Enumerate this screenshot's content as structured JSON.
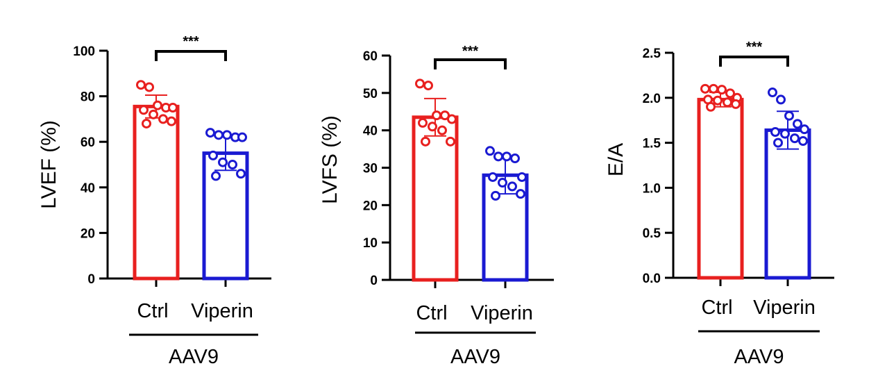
{
  "colors": {
    "ctrl": "#e8201f",
    "viperin": "#1a1ad2",
    "axis": "#000000"
  },
  "chart_data": [
    {
      "type": "bar",
      "ylabel": "LVEF (%)",
      "categories": [
        "Ctrl",
        "Viperin"
      ],
      "group_label": "AAV9",
      "significance": "***",
      "ylim": [
        0,
        100
      ],
      "yticks": [
        0,
        20,
        40,
        60,
        80,
        100
      ],
      "ytick_labels": [
        "0",
        "20",
        "40",
        "60",
        "80",
        "100"
      ],
      "series": [
        {
          "category": "Ctrl",
          "mean": 75.5,
          "sd": 5.0,
          "points": [
            85,
            84,
            76,
            75,
            75,
            74,
            72,
            70,
            69,
            68
          ]
        },
        {
          "category": "Viperin",
          "mean": 55.0,
          "sd": 7.5,
          "points": [
            64,
            63,
            63,
            62,
            62,
            54,
            51,
            50,
            46,
            45
          ]
        }
      ]
    },
    {
      "type": "bar",
      "ylabel": "LVFS (%)",
      "categories": [
        "Ctrl",
        "Viperin"
      ],
      "group_label": "AAV9",
      "significance": "***",
      "ylim": [
        0,
        60
      ],
      "yticks": [
        0,
        10,
        20,
        30,
        40,
        50,
        60
      ],
      "ytick_labels": [
        "0",
        "10",
        "20",
        "30",
        "40",
        "50",
        "60"
      ],
      "series": [
        {
          "category": "Ctrl",
          "mean": 43.5,
          "sd": 5.0,
          "points": [
            52.5,
            52,
            44,
            44,
            43,
            42,
            41,
            40,
            37,
            37
          ]
        },
        {
          "category": "Viperin",
          "mean": 28.0,
          "sd": 5.0,
          "points": [
            34.5,
            33,
            33,
            32.5,
            27.5,
            27.5,
            26,
            25,
            23,
            22.5
          ]
        }
      ]
    },
    {
      "type": "bar",
      "ylabel": "E/A",
      "categories": [
        "Ctrl",
        "Viperin"
      ],
      "group_label": "AAV9",
      "significance": "***",
      "ylim": [
        0,
        2.5
      ],
      "yticks": [
        0,
        0.5,
        1.0,
        1.5,
        2.0,
        2.5
      ],
      "ytick_labels": [
        "0.0",
        "0.5",
        "1.0",
        "1.5",
        "2.0",
        "2.5"
      ],
      "series": [
        {
          "category": "Ctrl",
          "mean": 1.98,
          "sd": 0.08,
          "points": [
            2.1,
            2.1,
            2.09,
            2.05,
            2.0,
            1.98,
            1.97,
            1.95,
            1.93,
            1.9
          ]
        },
        {
          "category": "Viperin",
          "mean": 1.64,
          "sd": 0.21,
          "points": [
            2.06,
            1.98,
            1.8,
            1.71,
            1.65,
            1.62,
            1.6,
            1.55,
            1.52,
            1.5
          ]
        }
      ]
    }
  ]
}
